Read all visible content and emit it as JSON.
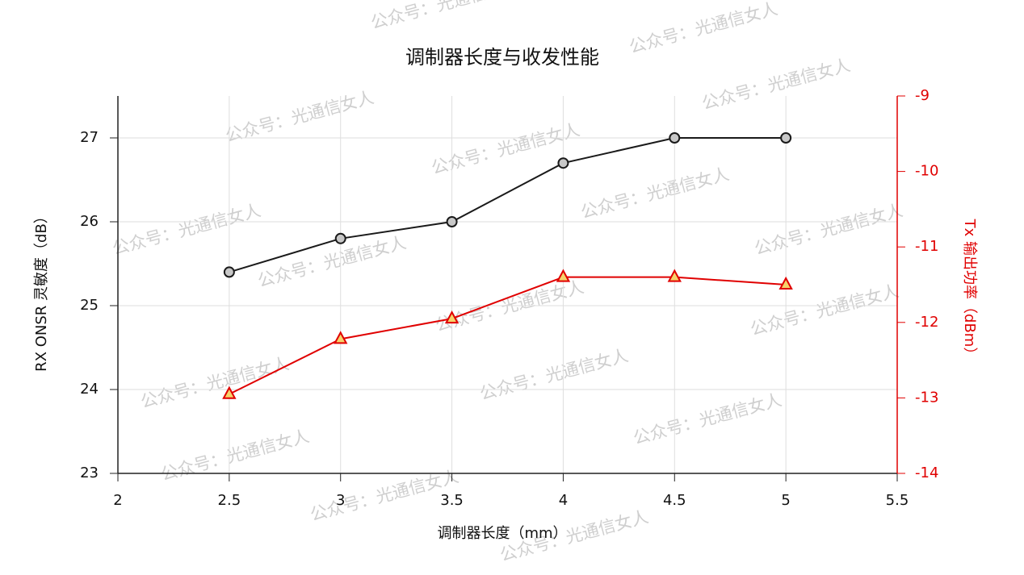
{
  "chart_data": {
    "type": "line",
    "title": "调制器长度与收发性能",
    "xlabel": "调制器长度（mm）",
    "ylabel": "RX ONSR 灵敏度（dB）",
    "y2label": "Tx 输出功率（dBm）",
    "watermark": "公众号：光通信女人",
    "x": [
      2.5,
      3,
      3.5,
      4,
      4.5,
      5
    ],
    "series": [
      {
        "color": "#1a1a1a",
        "marker": "circle",
        "marker_color": "#c8c8c8",
        "values": [
          25.4,
          25.8,
          26.0,
          26.7,
          27.0,
          27.0
        ]
      },
      {
        "color": "#e00000",
        "marker": "triangle",
        "marker_color": "#f6d36b",
        "axis": "y2",
        "values": [
          -12.95,
          -12.22,
          -11.95,
          -11.4,
          -11.4,
          -11.5
        ]
      }
    ],
    "xlim": [
      2,
      5.5
    ],
    "xticks": [
      2,
      2.5,
      3,
      3.5,
      4,
      4.5,
      5,
      5.5
    ],
    "ylim": [
      23,
      27.5
    ],
    "yticks": [
      23,
      24,
      25,
      26,
      27
    ],
    "y2lim": [
      -14,
      -9
    ],
    "y2ticks": [
      -14,
      -13,
      -12,
      -11,
      -10,
      -9
    ],
    "y2color": "#e00000",
    "grid": true
  }
}
